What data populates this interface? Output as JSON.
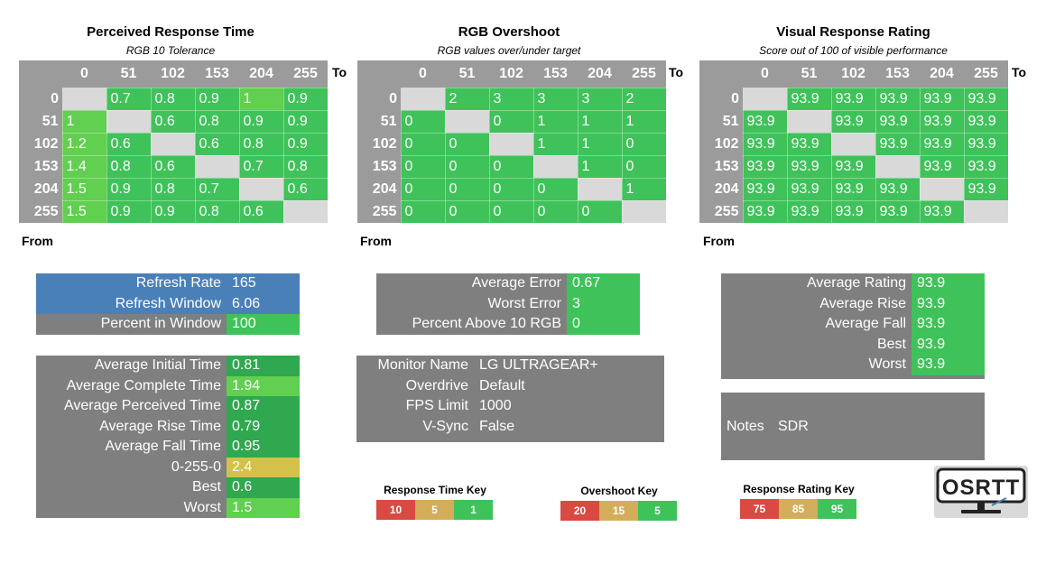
{
  "colors": {
    "green": "#3fc25a",
    "light_green": "#61cf4f",
    "dark_green": "#2fa84f",
    "yellow": "#d4c14a",
    "tan": "#d4ad5a",
    "red": "#d94a42",
    "blue": "#4a80b8",
    "gray": "#7f7f7f",
    "header_gray": "#9b9b9b",
    "diag_gray": "#d9d9d9"
  },
  "chart_data": [
    {
      "type": "heatmap",
      "title": "Perceived Response Time",
      "subtitle": "RGB 10 Tolerance",
      "xlabel": "To",
      "ylabel": "From",
      "x": [
        "0",
        "51",
        "102",
        "153",
        "204",
        "255"
      ],
      "y": [
        "0",
        "51",
        "102",
        "153",
        "204",
        "255"
      ],
      "values": [
        [
          null,
          "0.7",
          "0.8",
          "0.9",
          "1",
          "0.9"
        ],
        [
          "1",
          null,
          "0.6",
          "0.8",
          "0.9",
          "0.9"
        ],
        [
          "1.2",
          "0.6",
          null,
          "0.6",
          "0.8",
          "0.9"
        ],
        [
          "1.4",
          "0.8",
          "0.6",
          null,
          "0.7",
          "0.8"
        ],
        [
          "1.5",
          "0.9",
          "0.8",
          "0.7",
          null,
          "0.6"
        ],
        [
          "1.5",
          "0.9",
          "0.9",
          "0.8",
          "0.6",
          null
        ]
      ]
    },
    {
      "type": "heatmap",
      "title": "RGB Overshoot",
      "subtitle": "RGB values over/under target",
      "xlabel": "To",
      "ylabel": "From",
      "x": [
        "0",
        "51",
        "102",
        "153",
        "204",
        "255"
      ],
      "y": [
        "0",
        "51",
        "102",
        "153",
        "204",
        "255"
      ],
      "values": [
        [
          null,
          "2",
          "3",
          "3",
          "3",
          "2"
        ],
        [
          "0",
          null,
          "0",
          "1",
          "1",
          "1"
        ],
        [
          "0",
          "0",
          null,
          "1",
          "1",
          "0"
        ],
        [
          "0",
          "0",
          "0",
          null,
          "1",
          "0"
        ],
        [
          "0",
          "0",
          "0",
          "0",
          null,
          "1"
        ],
        [
          "0",
          "0",
          "0",
          "0",
          "0",
          null
        ]
      ]
    },
    {
      "type": "heatmap",
      "title": "Visual Response Rating",
      "subtitle": "Score out of 100 of visible performance",
      "xlabel": "To",
      "ylabel": "From",
      "x": [
        "0",
        "51",
        "102",
        "153",
        "204",
        "255"
      ],
      "y": [
        "0",
        "51",
        "102",
        "153",
        "204",
        "255"
      ],
      "values": [
        [
          null,
          "93.9",
          "93.9",
          "93.9",
          "93.9",
          "93.9"
        ],
        [
          "93.9",
          null,
          "93.9",
          "93.9",
          "93.9",
          "93.9"
        ],
        [
          "93.9",
          "93.9",
          null,
          "93.9",
          "93.9",
          "93.9"
        ],
        [
          "93.9",
          "93.9",
          "93.9",
          null,
          "93.9",
          "93.9"
        ],
        [
          "93.9",
          "93.9",
          "93.9",
          "93.9",
          null,
          "93.9"
        ],
        [
          "93.9",
          "93.9",
          "93.9",
          "93.9",
          "93.9",
          null
        ]
      ]
    }
  ],
  "refresh_box": [
    {
      "label": "Refresh Rate",
      "value": "165"
    },
    {
      "label": "Refresh Window",
      "value": "6.06"
    },
    {
      "label": "Percent in Window",
      "value": "100"
    }
  ],
  "time_box": [
    {
      "label": "Average Initial Time",
      "value": "0.81"
    },
    {
      "label": "Average Complete Time",
      "value": "1.94"
    },
    {
      "label": "Average Perceived Time",
      "value": "0.87"
    },
    {
      "label": "Average Rise Time",
      "value": "0.79"
    },
    {
      "label": "Average Fall Time",
      "value": "0.95"
    },
    {
      "label": "0-255-0",
      "value": "2.4"
    },
    {
      "label": "Best",
      "value": "0.6"
    },
    {
      "label": "Worst",
      "value": "1.5"
    }
  ],
  "error_box": [
    {
      "label": "Average Error",
      "value": "0.67"
    },
    {
      "label": "Worst Error",
      "value": "3"
    },
    {
      "label": "Percent Above 10 RGB",
      "value": "0"
    }
  ],
  "monitor_box": [
    {
      "label": "Monitor Name",
      "value": "LG ULTRAGEAR+"
    },
    {
      "label": "Overdrive",
      "value": "Default"
    },
    {
      "label": "FPS Limit",
      "value": "1000"
    },
    {
      "label": "V-Sync",
      "value": "False"
    }
  ],
  "rating_box": [
    {
      "label": "Average Rating",
      "value": "93.9"
    },
    {
      "label": "Average Rise",
      "value": "93.9"
    },
    {
      "label": "Average Fall",
      "value": "93.9"
    },
    {
      "label": "Best",
      "value": "93.9"
    },
    {
      "label": "Worst",
      "value": "93.9"
    }
  ],
  "notes": {
    "label": "Notes",
    "value": "SDR"
  },
  "keys": [
    {
      "title": "Response Time Key",
      "values": [
        "10",
        "5",
        "1"
      ]
    },
    {
      "title": "Overshoot Key",
      "values": [
        "20",
        "15",
        "5"
      ]
    },
    {
      "title": "Response Rating Key",
      "values": [
        "75",
        "85",
        "95"
      ]
    }
  ],
  "logo": {
    "text": "OSRTT",
    "icon": "monitor-logo-icon"
  }
}
